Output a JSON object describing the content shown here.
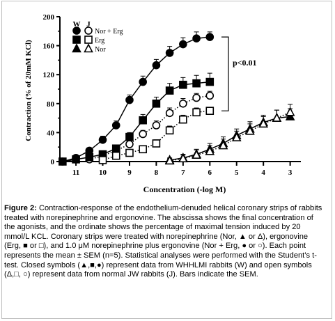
{
  "chart_data": {
    "type": "scatter",
    "xlabel": "Concentration (-log M)",
    "ylabel": "Contraction (% of 20mM KCl)",
    "x_reversed": true,
    "xlim": [
      11.6,
      2.6
    ],
    "ylim": [
      0,
      200
    ],
    "x_ticks": [
      "11",
      "10",
      "9",
      "8",
      "7",
      "6",
      "5",
      "4",
      "3"
    ],
    "y_ticks": [
      "0",
      "40",
      "80",
      "120",
      "160",
      "200"
    ],
    "legend": {
      "position": "top-left",
      "header_w": "W",
      "header_j": "J",
      "labels": [
        "Nor + Erg",
        "Erg",
        "Nor"
      ]
    },
    "annotation": "p<0.01",
    "series": [
      {
        "name": "Nor + Erg",
        "marker": "circle",
        "filled": true,
        "line": "solid",
        "x": [
          11.5,
          11,
          10.5,
          10,
          9.5,
          9,
          8.5,
          8,
          7.5,
          7,
          6.5,
          6
        ],
        "y": [
          0,
          5,
          15,
          30,
          50,
          85,
          110,
          133,
          150,
          162,
          170,
          172
        ],
        "err": [
          0,
          3,
          4,
          5,
          6,
          7,
          8,
          8,
          9,
          9,
          9,
          7
        ]
      },
      {
        "name": "Nor + Erg",
        "marker": "circle",
        "filled": false,
        "line": "dotted",
        "x": [
          10.5,
          10,
          9.5,
          9,
          8.5,
          8,
          7.5,
          7,
          6.5,
          6
        ],
        "y": [
          3,
          8,
          15,
          24,
          38,
          50,
          67,
          80,
          88,
          91
        ],
        "err": [
          2,
          3,
          4,
          5,
          5,
          6,
          7,
          7,
          6,
          6
        ]
      },
      {
        "name": "Erg",
        "marker": "square",
        "filled": true,
        "line": "solid",
        "x": [
          11.5,
          11,
          10.5,
          10,
          9.5,
          9,
          8.5,
          8,
          7.5,
          7,
          6.5,
          6
        ],
        "y": [
          0,
          3,
          6,
          10,
          18,
          34,
          57,
          80,
          98,
          106,
          108,
          110
        ],
        "err": [
          0,
          2,
          3,
          4,
          5,
          6,
          8,
          9,
          10,
          10,
          11,
          12
        ]
      },
      {
        "name": "Erg",
        "marker": "square",
        "filled": false,
        "line": "dotted",
        "x": [
          10,
          9.5,
          9,
          8.5,
          8,
          7.5,
          7,
          6.5,
          6
        ],
        "y": [
          2,
          8,
          12,
          17,
          25,
          43,
          58,
          68,
          70
        ],
        "err": [
          2,
          3,
          3,
          4,
          5,
          6,
          6,
          6,
          5
        ]
      },
      {
        "name": "Nor",
        "marker": "triangle",
        "filled": true,
        "line": "solid",
        "x": [
          7.5,
          7,
          6.5,
          6,
          5.5,
          5,
          4.5,
          4,
          3.5,
          3
        ],
        "y": [
          2,
          5,
          10,
          17,
          25,
          36,
          45,
          54,
          60,
          62
        ],
        "err": [
          3,
          5,
          7,
          8,
          9,
          9,
          10,
          10,
          11,
          11
        ]
      },
      {
        "name": "Nor",
        "marker": "triangle",
        "filled": false,
        "line": "dotted",
        "x": [
          7.5,
          7,
          6.5,
          6,
          5.5,
          5,
          4.5,
          4,
          3.5,
          3
        ],
        "y": [
          1,
          4,
          9,
          14,
          22,
          33,
          42,
          52,
          60,
          68
        ],
        "err": [
          3,
          5,
          7,
          8,
          9,
          9,
          10,
          10,
          11,
          11
        ]
      }
    ]
  },
  "caption": {
    "label": "Figure 2:",
    "text": " Contraction-response of the endothelium-denuded helical coronary strips of rabbits treated with norepinephrine and ergonovine. The abscissa shows the final concentration of the agonists, and the ordinate shows the percentage of maximal tension induced by 20 mmol/L KCL. Coronary strips were treated with norepinephrine (Nor, ▲ or Δ), ergonovine (Erg, ■ or □), and 1.0 μM norepinephrine plus ergonovine (Nor + Erg, ● or ○). Each point represents the mean ± SEM (n=5). Statistical analyses were performed with the Student’s t-test. Closed symbols (▲,■,●) represent data from WHHLMI rabbits (W) and open symbols (Δ,□, ○) represent data from normal JW rabbits (J). Bars indicate the SEM."
  }
}
